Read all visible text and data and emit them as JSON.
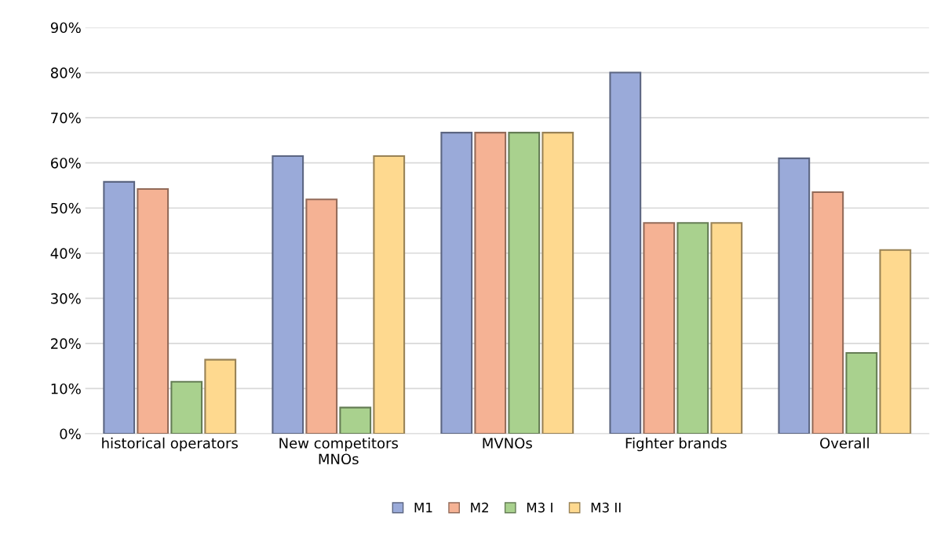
{
  "chart_data": {
    "type": "bar",
    "categories": [
      "historical operators",
      "New competitors\nMNOs",
      "MVNOs",
      "Fighter brands",
      "Overall"
    ],
    "series": [
      {
        "name": "M1",
        "color": "#9aaad9",
        "values": [
          55.8,
          61.5,
          66.7,
          80,
          61
        ]
      },
      {
        "name": "M2",
        "color": "#f5b294",
        "values": [
          54.2,
          51.9,
          66.7,
          46.7,
          53.5
        ]
      },
      {
        "name": "M3 I",
        "color": "#a9d18e",
        "values": [
          11.5,
          5.8,
          66.7,
          46.7,
          17.9
        ]
      },
      {
        "name": "M3 II",
        "color": "#fed98f",
        "values": [
          16.4,
          61.5,
          66.7,
          46.7,
          40.7
        ]
      }
    ],
    "ylim": [
      0,
      90
    ],
    "yticks": [
      {
        "value": 0,
        "label": "0%"
      },
      {
        "value": 10,
        "label": "10%"
      },
      {
        "value": 20,
        "label": "20%"
      },
      {
        "value": 30,
        "label": "30%"
      },
      {
        "value": 40,
        "label": "40%"
      },
      {
        "value": 50,
        "label": "50%"
      },
      {
        "value": 60,
        "label": "60%"
      },
      {
        "value": 70,
        "label": "70%"
      },
      {
        "value": 80,
        "label": "80%"
      },
      {
        "value": 90,
        "label": "90%"
      }
    ],
    "grid": "y",
    "legend": "bottom"
  }
}
